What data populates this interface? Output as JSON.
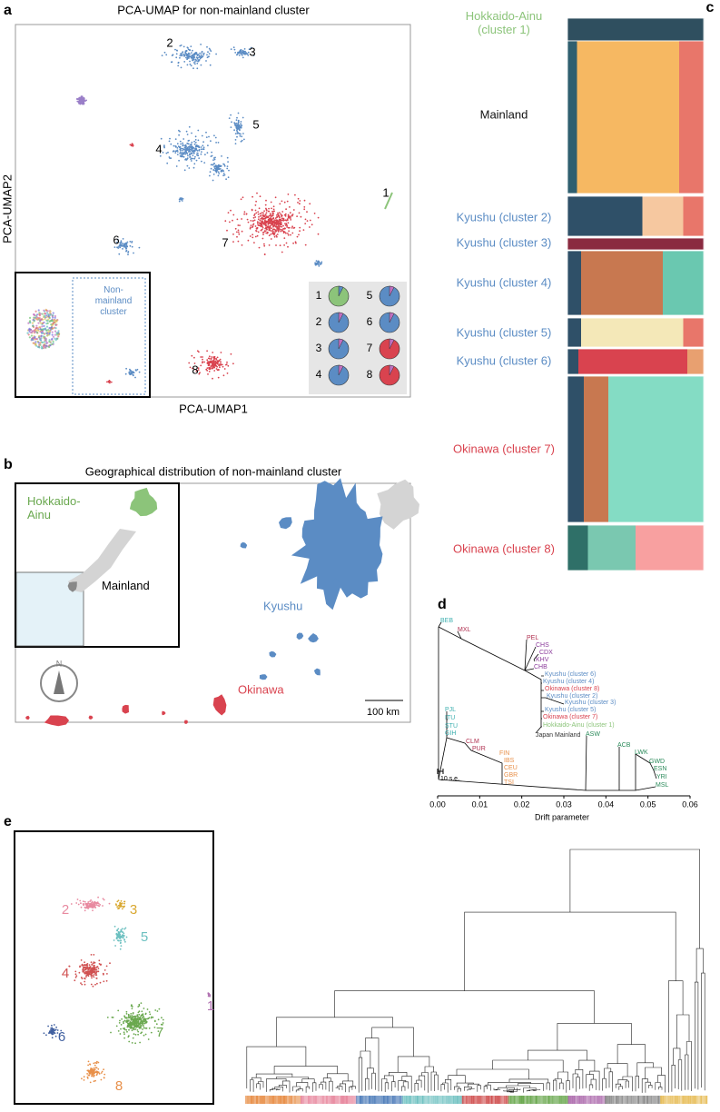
{
  "a": {
    "letter": "a",
    "title": "PCA-UMAP for non-mainland cluster",
    "x_label": "PCA-UMAP1",
    "y_label": "PCA-UMAP2",
    "clusters": [
      "1",
      "2",
      "3",
      "4",
      "5",
      "6",
      "7",
      "8"
    ],
    "inset_label": "Non-mainland cluster",
    "pies": [
      "1",
      "2",
      "3",
      "4",
      "5",
      "6",
      "7",
      "8"
    ]
  },
  "b": {
    "letter": "b",
    "title": "Geographical distribution of non-mainland cluster",
    "inset_labels": [
      "Hokkaido-Ainu",
      "Mainland"
    ],
    "labels": [
      "Kyushu",
      "Okinawa"
    ],
    "compass": "N",
    "scale_bar": "100 km"
  },
  "c": {
    "letter": "c",
    "groups": [
      {
        "label": "Hokkaido-Ainu (cluster 1)",
        "color": "#8cc47a"
      },
      {
        "label": "Mainland",
        "color": "#111111"
      },
      {
        "label": "Kyushu (cluster 2)",
        "color": "#5b8cc4"
      },
      {
        "label": "Kyushu (cluster 3)",
        "color": "#5b8cc4"
      },
      {
        "label": "Kyushu (cluster 4)",
        "color": "#5b8cc4"
      },
      {
        "label": "Kyushu (cluster 5)",
        "color": "#5b8cc4"
      },
      {
        "label": "Kyushu (cluster 6)",
        "color": "#5b8cc4"
      },
      {
        "label": "Okinawa (cluster 7)",
        "color": "#d9434f"
      },
      {
        "label": "Okinawa (cluster 8)",
        "color": "#d9434f"
      }
    ]
  },
  "d": {
    "letter": "d",
    "x_label": "Drift parameter",
    "xlim": [
      0,
      0.06
    ],
    "xticks": [
      {
        "value": 0,
        "label": "0.00"
      },
      0.01,
      0.02,
      0.03,
      0.04,
      0.05,
      0.06
    ],
    "scale_label": "10 s.e.",
    "leaves": [
      {
        "label": "BEB",
        "color": "#3fb0b0"
      },
      {
        "label": "MXL",
        "color": "#b03050"
      },
      {
        "label": "PEL",
        "color": "#b03050"
      },
      {
        "label": "CHS",
        "color": "#8a3a9a"
      },
      {
        "label": "CDX",
        "color": "#8a3a9a"
      },
      {
        "label": "KHV",
        "color": "#8a3a9a"
      },
      {
        "label": "CHB",
        "color": "#8a3a9a"
      },
      {
        "label": "Kyushu (cluster 6)",
        "color": "#5b8cc4"
      },
      {
        "label": "Kyushu (cluster 4)",
        "color": "#5b8cc4"
      },
      {
        "label": "Okinawa (cluster 8)",
        "color": "#d9434f"
      },
      {
        "label": "Kyushu (cluster 2)",
        "color": "#5b8cc4"
      },
      {
        "label": "Kyushu (cluster 3)",
        "color": "#5b8cc4"
      },
      {
        "label": "Kyushu (cluster 5)",
        "color": "#5b8cc4"
      },
      {
        "label": "Okinawa (cluster 7)",
        "color": "#d9434f"
      },
      {
        "label": "Hokkaido-Ainu (cluster 1)",
        "color": "#8cc47a"
      },
      {
        "label": "Japan Mainland",
        "color": "#333333"
      },
      {
        "label": "PJL",
        "color": "#3fb0b0"
      },
      {
        "label": "ITU",
        "color": "#3fb0b0"
      },
      {
        "label": "STU",
        "color": "#3fb0b0"
      },
      {
        "label": "GIH",
        "color": "#3fb0b0"
      },
      {
        "label": "CLM",
        "color": "#b03050"
      },
      {
        "label": "PUR",
        "color": "#b03050"
      },
      {
        "label": "FIN",
        "color": "#e8904a"
      },
      {
        "label": "IBS",
        "color": "#e8904a"
      },
      {
        "label": "CEU",
        "color": "#e8904a"
      },
      {
        "label": "GBR",
        "color": "#e8904a"
      },
      {
        "label": "TSI",
        "color": "#e8904a"
      },
      {
        "label": "ASW",
        "color": "#2a8a5a"
      },
      {
        "label": "ACB",
        "color": "#2a8a5a"
      },
      {
        "label": "LWK",
        "color": "#2a8a5a"
      },
      {
        "label": "GWD",
        "color": "#2a8a5a"
      },
      {
        "label": "ESN",
        "color": "#2a8a5a"
      },
      {
        "label": "YRI",
        "color": "#2a8a5a"
      },
      {
        "label": "MSL",
        "color": "#2a8a5a"
      }
    ]
  },
  "e": {
    "letter": "e",
    "clusters": [
      {
        "label": "1",
        "color": "#b070b0"
      },
      {
        "label": "2",
        "color": "#e88aa0"
      },
      {
        "label": "3",
        "color": "#d9a830"
      },
      {
        "label": "4",
        "color": "#d05050"
      },
      {
        "label": "5",
        "color": "#6cc0c0"
      },
      {
        "label": "6",
        "color": "#4060a0"
      },
      {
        "label": "7",
        "color": "#6aa84f"
      },
      {
        "label": "8",
        "color": "#e8904a"
      }
    ]
  }
}
